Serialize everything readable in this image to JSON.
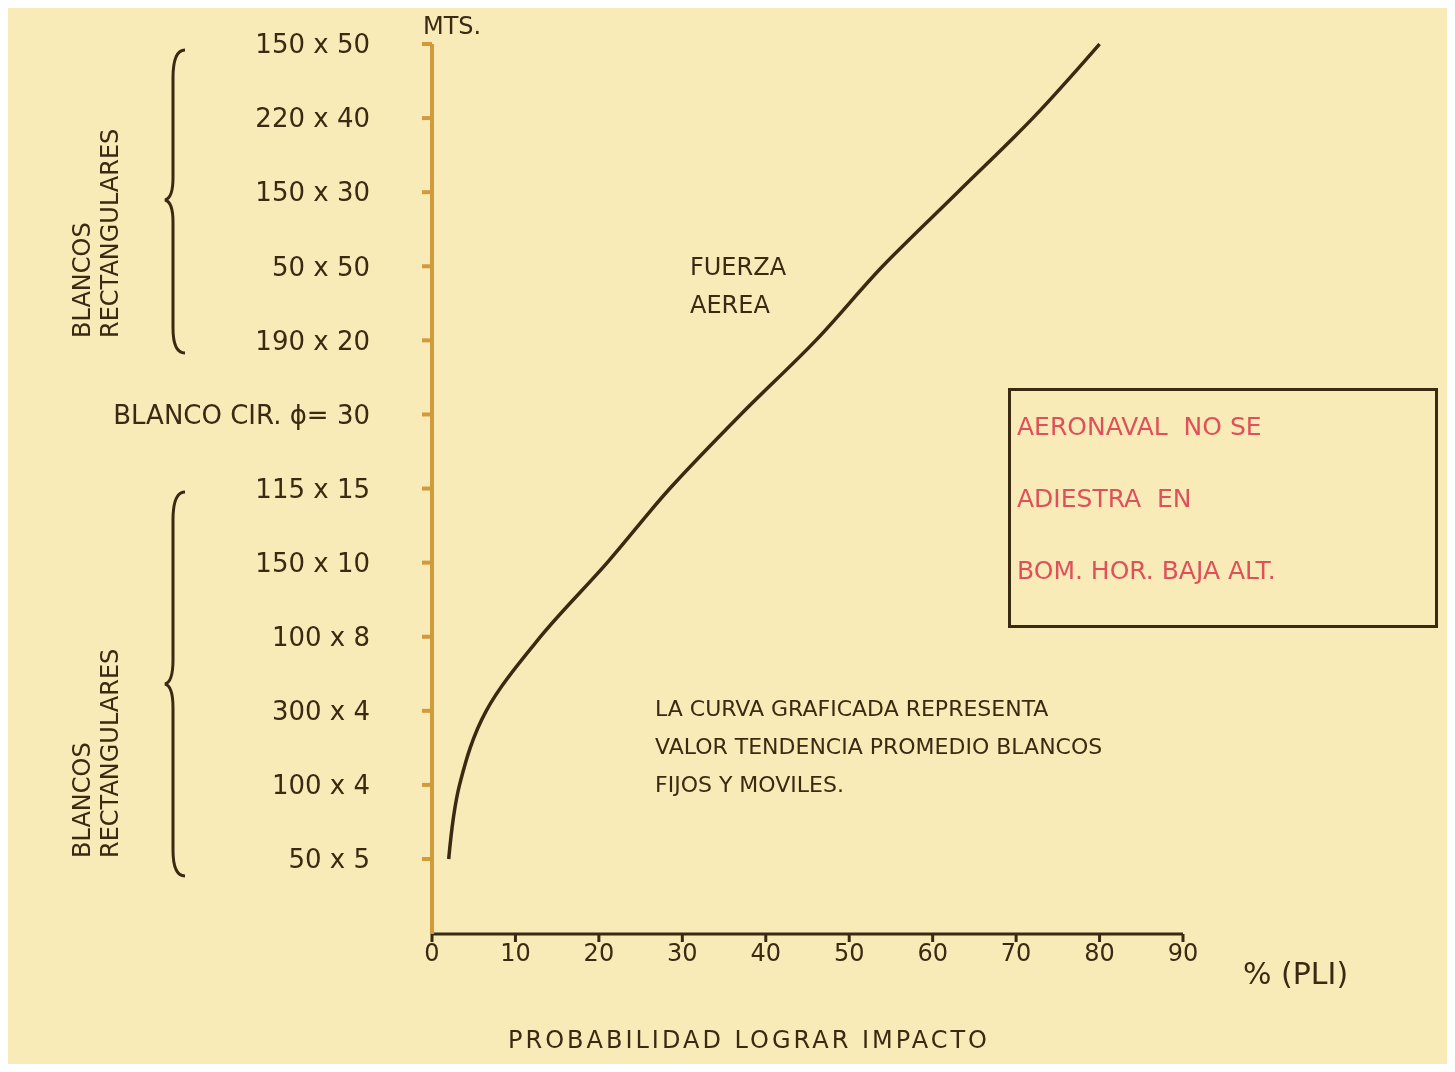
{
  "chart_data": {
    "type": "line",
    "orientation": "horizontal",
    "categories": [
      "150 x 50",
      "220 x 40",
      "150 x 30",
      "50 x 50",
      "190 x 20",
      "BLANCO CIR. ϕ= 30",
      "115 x 15",
      "150 x 10",
      "100 x 8",
      "300 x 4",
      "100 x 4",
      "50 x 5"
    ],
    "series": [
      {
        "name": "FUERZA AEREA",
        "color": "#3a2a12",
        "values": [
          80,
          72,
          63,
          54,
          46,
          37,
          28.5,
          21,
          13,
          6.5,
          3.3,
          2
        ]
      }
    ],
    "xlim": [
      0,
      90
    ],
    "xticks": [
      0,
      10,
      20,
      30,
      40,
      50,
      60,
      70,
      80,
      90
    ],
    "ylabel": "MTS.",
    "xlabel": "PROBABILIDAD LOGRAR IMPACTO",
    "annotations": [
      "% (PLI)",
      "BLANCOS\nRECTANGULARES",
      "BLANCOS\nRECTANGULARES",
      "LA CURVA GRAFICADA REPRESENTA\nVALOR TENDENCIA PROMEDIO BLANCOS\nFIJOS Y MOVILES.",
      "AERONAVAL  NO SE\nADIESTRA  EN\nBOM. HOR. BAJA ALT."
    ],
    "legend": false,
    "grid": false,
    "marker": "none",
    "line_style": "solid"
  }
}
